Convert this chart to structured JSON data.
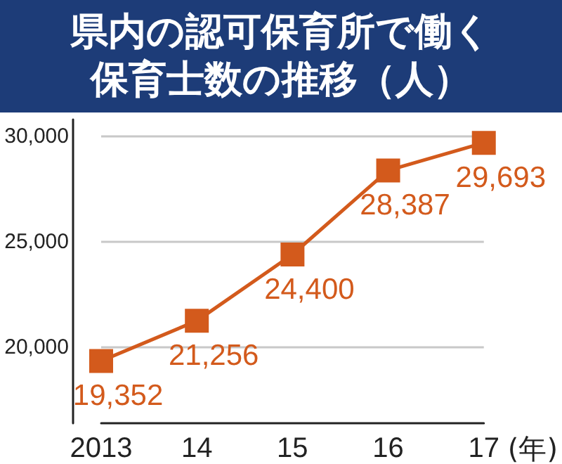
{
  "chart_data": {
    "type": "line",
    "title": "県内の認可保育所で働く保育士数の推移（人）",
    "xlabel": "(年)",
    "categories": [
      "2013",
      "14",
      "15",
      "16",
      "17"
    ],
    "series": [
      {
        "color": "#d35a1c",
        "values": [
          19352,
          21256,
          24400,
          28387,
          29693
        ],
        "value_labels": [
          "19,352",
          "21,256",
          "24,400",
          "28,387",
          "29,693"
        ]
      }
    ],
    "ylim": [
      16400,
      30800
    ],
    "yticks": [
      {
        "value": 20000,
        "label": "20,000"
      },
      {
        "value": 25000,
        "label": "25,000"
      },
      {
        "value": 30000,
        "label": "30,000"
      }
    ],
    "grid": "y",
    "marker": "square",
    "line_style": "solid"
  }
}
